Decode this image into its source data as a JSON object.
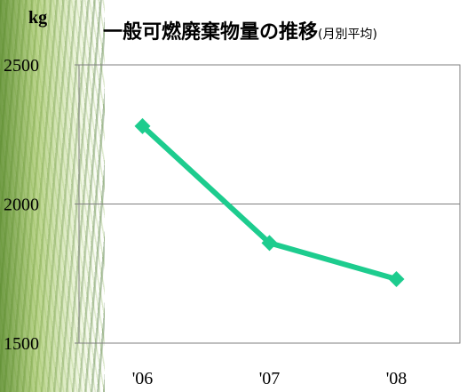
{
  "chart_data": {
    "type": "line",
    "title": "一般可燃廃棄物量の推移",
    "subtitle": "(月別平均)",
    "ylabel": "kg",
    "xlabel": "",
    "categories": [
      "'06",
      "'07",
      "'08"
    ],
    "series": [
      {
        "values": [
          2280,
          1860,
          1730
        ],
        "color": "#1dcc8e"
      }
    ],
    "ylim": [
      1500,
      2500
    ],
    "yticks": [
      1500,
      2000,
      2500
    ],
    "grid": true,
    "legend": "none",
    "marker": "diamond"
  }
}
